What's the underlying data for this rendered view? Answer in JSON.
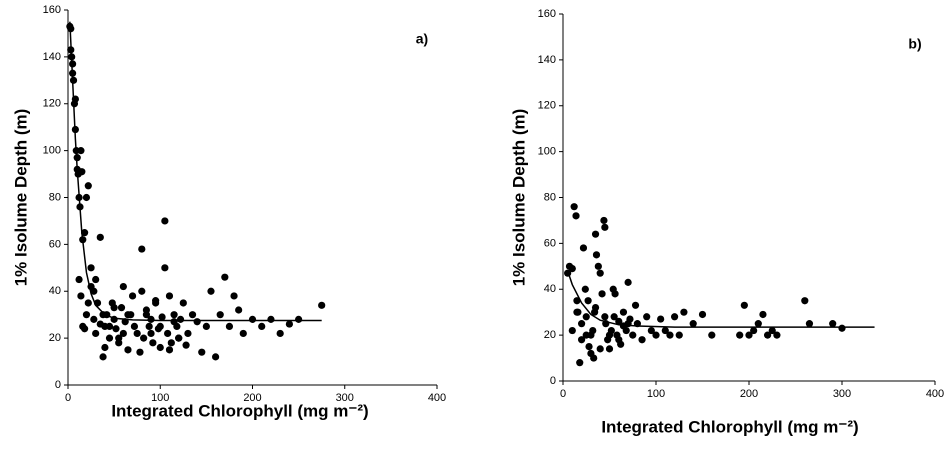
{
  "chart_data": [
    {
      "type": "scatter",
      "panel_label": "a)",
      "xlabel": "Integrated Chlorophyll (mg m⁻²)",
      "ylabel": "1% Isolume Depth (m)",
      "xlim": [
        0,
        400
      ],
      "xticks": [
        0,
        100,
        200,
        300,
        400
      ],
      "ylim": [
        0,
        160
      ],
      "yticks": [
        0,
        20,
        40,
        60,
        80,
        100,
        120,
        140,
        160
      ],
      "series": [
        {
          "type": "scatter",
          "color": "#000000",
          "x": [
            2,
            3,
            3,
            4,
            5,
            5,
            6,
            7,
            8,
            8,
            9,
            10,
            10,
            11,
            12,
            13,
            14,
            15,
            16,
            18,
            20,
            22,
            25,
            28,
            30,
            35,
            38,
            12,
            14,
            16,
            18,
            20,
            22,
            25,
            28,
            30,
            32,
            35,
            38,
            40,
            42,
            45,
            48,
            50,
            52,
            55,
            58,
            60,
            62,
            65,
            68,
            70,
            72,
            75,
            78,
            80,
            82,
            85,
            88,
            90,
            92,
            95,
            98,
            100,
            102,
            105,
            108,
            110,
            112,
            115,
            118,
            120,
            122,
            125,
            128,
            130,
            135,
            140,
            145,
            150,
            155,
            160,
            165,
            170,
            175,
            180,
            185,
            190,
            200,
            210,
            220,
            230,
            240,
            250,
            275,
            80,
            85,
            90,
            95,
            100,
            105,
            110,
            115,
            120,
            40,
            45,
            50,
            55,
            60,
            65
          ],
          "values": [
            153,
            152,
            143,
            140,
            137,
            133,
            130,
            120,
            122,
            109,
            100,
            97,
            92,
            90,
            80,
            76,
            100,
            91,
            62,
            65,
            80,
            85,
            50,
            40,
            45,
            63,
            30,
            45,
            38,
            25,
            24,
            30,
            35,
            42,
            28,
            22,
            35,
            26,
            12,
            25,
            30,
            20,
            35,
            28,
            24,
            18,
            33,
            22,
            27,
            15,
            30,
            38,
            25,
            22,
            14,
            40,
            20,
            32,
            25,
            28,
            18,
            35,
            24,
            16,
            29,
            70,
            22,
            38,
            18,
            30,
            25,
            20,
            28,
            35,
            17,
            22,
            30,
            27,
            14,
            25,
            40,
            12,
            30,
            46,
            25,
            38,
            32,
            22,
            28,
            25,
            28,
            22,
            26,
            28,
            34,
            58,
            30,
            22,
            36,
            25,
            50,
            15,
            27,
            20,
            16,
            25,
            33,
            20,
            42,
            30
          ]
        },
        {
          "type": "line",
          "color": "#000000",
          "x": [
            2,
            5,
            8,
            10,
            15,
            20,
            25,
            30,
            40,
            50,
            70,
            100,
            275
          ],
          "values": [
            155,
            130,
            105,
            92,
            65,
            48,
            39,
            34,
            30,
            28.5,
            27.8,
            27.5,
            27.5
          ]
        }
      ]
    },
    {
      "type": "scatter",
      "panel_label": "b)",
      "xlabel": "Integrated Chlorophyll (mg m⁻²)",
      "ylabel": "1% Isolume Depth (m)",
      "xlim": [
        0,
        400
      ],
      "xticks": [
        0,
        100,
        200,
        300,
        400
      ],
      "ylim": [
        0,
        160
      ],
      "yticks": [
        0,
        20,
        40,
        60,
        80,
        100,
        120,
        140,
        160
      ],
      "series": [
        {
          "type": "scatter",
          "color": "#000000",
          "x": [
            5,
            7,
            10,
            12,
            14,
            15,
            16,
            18,
            20,
            22,
            24,
            25,
            27,
            28,
            30,
            32,
            33,
            34,
            35,
            36,
            38,
            40,
            42,
            44,
            45,
            46,
            48,
            50,
            52,
            54,
            56,
            58,
            60,
            62,
            65,
            68,
            70,
            72,
            75,
            78,
            80,
            85,
            90,
            95,
            100,
            105,
            110,
            115,
            120,
            125,
            130,
            140,
            150,
            160,
            190,
            195,
            200,
            205,
            210,
            215,
            220,
            225,
            230,
            260,
            265,
            290,
            300,
            10,
            15,
            20,
            25,
            30,
            35,
            40,
            45,
            50,
            55,
            60,
            65,
            70
          ],
          "values": [
            47,
            50,
            49,
            76,
            72,
            35,
            30,
            8,
            25,
            58,
            40,
            20,
            35,
            15,
            12,
            22,
            10,
            30,
            64,
            55,
            50,
            47,
            38,
            70,
            67,
            25,
            18,
            14,
            22,
            40,
            38,
            20,
            26,
            16,
            30,
            22,
            43,
            27,
            20,
            33,
            25,
            18,
            28,
            22,
            20,
            27,
            22,
            20,
            28,
            20,
            30,
            25,
            29,
            20,
            20,
            33,
            20,
            22,
            25,
            29,
            20,
            22,
            20,
            35,
            25,
            25,
            23,
            22,
            30,
            18,
            28,
            20,
            32,
            14,
            28,
            20,
            28,
            18,
            24,
            25
          ]
        },
        {
          "type": "line",
          "color": "#000000",
          "x": [
            5,
            10,
            20,
            30,
            40,
            60,
            80,
            120,
            335
          ],
          "values": [
            48,
            42,
            34,
            29,
            26.5,
            24.5,
            24,
            23.5,
            23.5
          ]
        }
      ]
    }
  ]
}
